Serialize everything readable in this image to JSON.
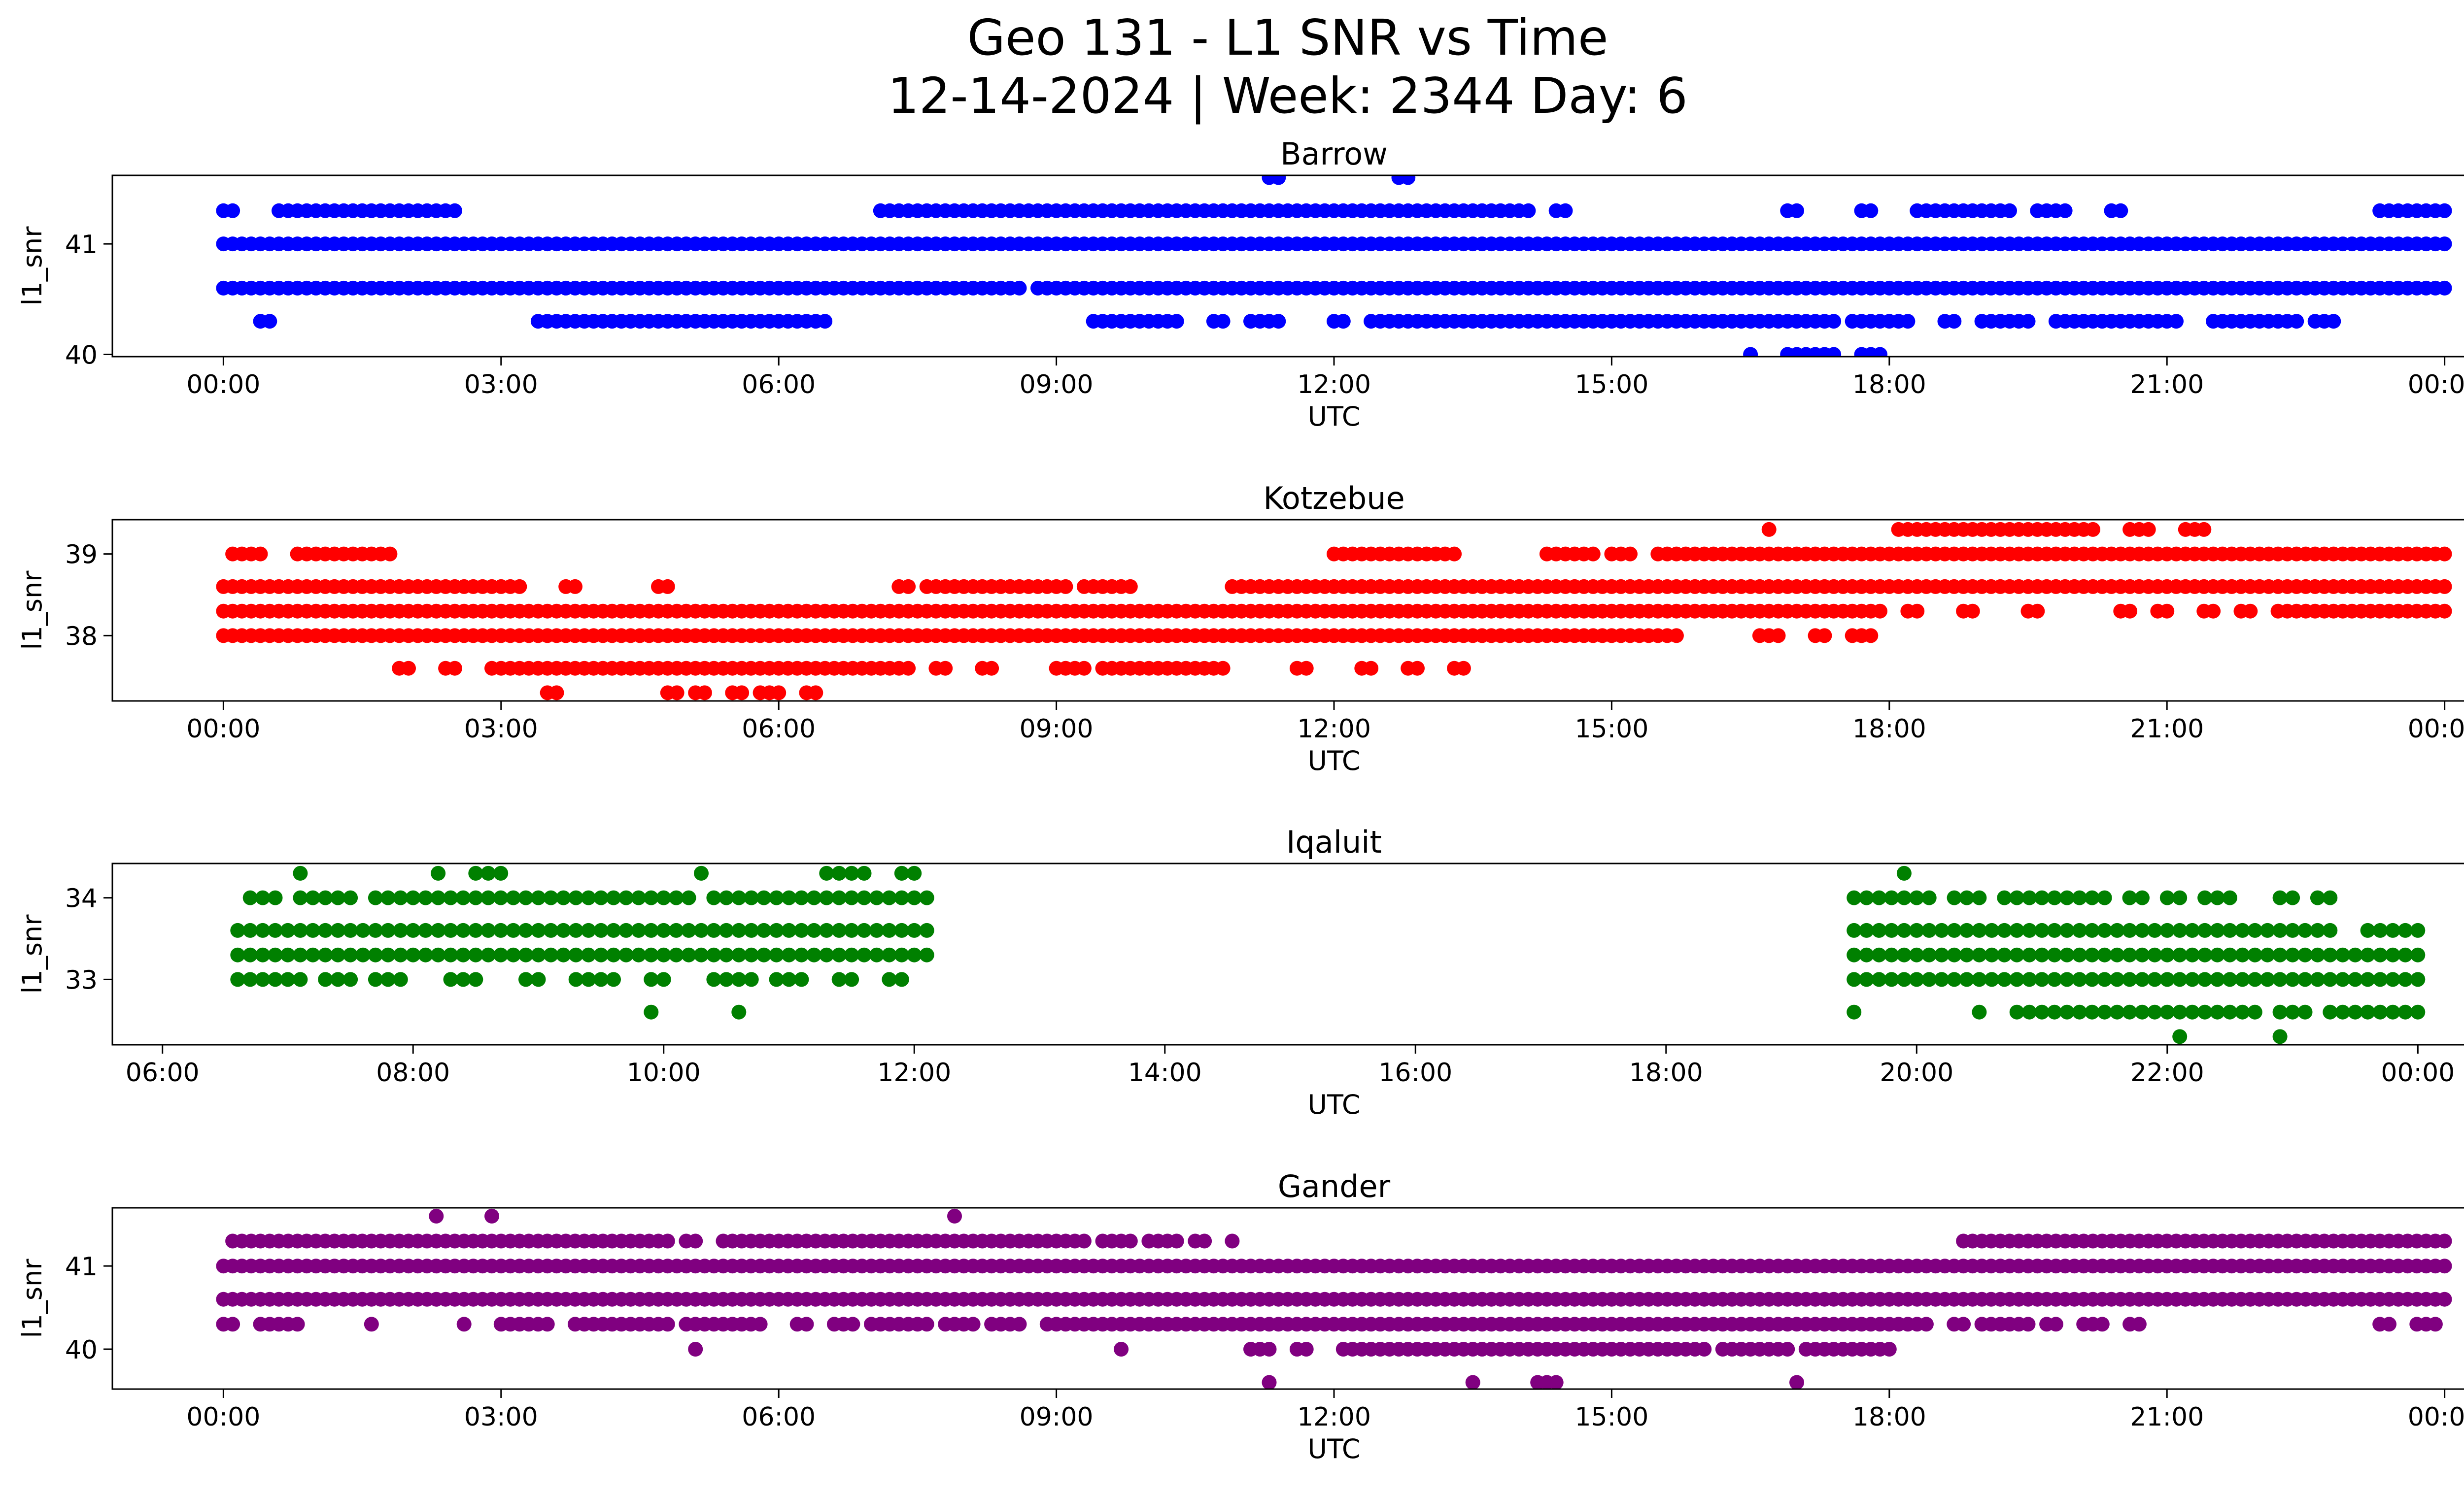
{
  "figure": {
    "title_line1": "Geo 131 - L1 SNR vs Time",
    "title_line2": "12-14-2024 | Week: 2344 Day: 6"
  },
  "chart_data": [
    {
      "type": "scatter",
      "title": "Barrow",
      "xlabel": "UTC",
      "ylabel": "l1_snr",
      "color": "#0000ff",
      "x_unit": "hours",
      "xlim": [
        -1.2,
        25.2
      ],
      "ylim": [
        39.98,
        41.62
      ],
      "xticks": [
        0,
        3,
        6,
        9,
        12,
        15,
        18,
        21,
        24
      ],
      "xtick_labels": [
        "00:00",
        "03:00",
        "06:00",
        "09:00",
        "12:00",
        "15:00",
        "18:00",
        "21:00",
        "00:00"
      ],
      "yticks": [
        40,
        41
      ],
      "ytick_labels": [
        "40",
        "41"
      ],
      "series": [
        {
          "y": 41.0,
          "segments": [
            [
              0.0,
              24.0
            ]
          ]
        },
        {
          "y": 40.6,
          "segments": [
            [
              0.0,
              8.6
            ],
            [
              8.8,
              24.0
            ]
          ]
        },
        {
          "y": 41.3,
          "segments": [
            [
              0.0,
              0.1
            ],
            [
              0.6,
              2.5
            ],
            [
              7.1,
              8.9
            ],
            [
              9.0,
              14.1
            ],
            [
              14.4,
              14.5
            ],
            [
              16.9,
              17.0
            ],
            [
              17.7,
              17.8
            ],
            [
              18.3,
              19.3
            ],
            [
              19.6,
              19.9
            ],
            [
              20.4,
              20.5
            ],
            [
              23.3,
              24.0
            ]
          ]
        },
        {
          "y": 40.3,
          "segments": [
            [
              0.4,
              0.5
            ],
            [
              3.4,
              6.5
            ],
            [
              9.4,
              10.3
            ],
            [
              10.7,
              10.8
            ],
            [
              11.1,
              11.4
            ],
            [
              12.0,
              12.1
            ],
            [
              12.4,
              17.4
            ],
            [
              17.6,
              18.2
            ],
            [
              18.6,
              18.7
            ],
            [
              19.0,
              19.5
            ],
            [
              19.8,
              21.1
            ],
            [
              21.5,
              22.4
            ],
            [
              22.6,
              22.8
            ]
          ]
        },
        {
          "y": 40.0,
          "segments": [
            [
              16.5,
              16.5
            ],
            [
              16.9,
              17.4
            ],
            [
              17.7,
              17.9
            ]
          ]
        },
        {
          "y": 41.6,
          "segments": [
            [
              11.3,
              11.4
            ],
            [
              12.7,
              12.8
            ]
          ]
        }
      ]
    },
    {
      "type": "scatter",
      "title": "Kotzebue",
      "xlabel": "UTC",
      "ylabel": "l1_snr",
      "color": "#ff0000",
      "x_unit": "hours",
      "xlim": [
        -1.2,
        25.2
      ],
      "ylim": [
        37.2,
        39.42
      ],
      "xticks": [
        0,
        3,
        6,
        9,
        12,
        15,
        18,
        21,
        24
      ],
      "xtick_labels": [
        "00:00",
        "03:00",
        "06:00",
        "09:00",
        "12:00",
        "15:00",
        "18:00",
        "21:00",
        "00:00"
      ],
      "yticks": [
        38,
        39
      ],
      "ytick_labels": [
        "38",
        "39"
      ],
      "series": [
        {
          "y": 38.6,
          "segments": [
            [
              0.0,
              3.2
            ],
            [
              3.7,
              3.8
            ],
            [
              4.7,
              4.8
            ],
            [
              7.3,
              7.4
            ],
            [
              7.6,
              9.1
            ],
            [
              9.3,
              9.8
            ],
            [
              10.9,
              24.0
            ]
          ]
        },
        {
          "y": 38.3,
          "segments": [
            [
              0.0,
              17.9
            ],
            [
              18.2,
              18.3
            ],
            [
              18.8,
              18.9
            ],
            [
              19.5,
              19.6
            ],
            [
              20.5,
              20.6
            ],
            [
              20.9,
              21.0
            ],
            [
              21.4,
              21.5
            ],
            [
              21.8,
              21.9
            ],
            [
              22.2,
              24.0
            ]
          ]
        },
        {
          "y": 38.0,
          "segments": [
            [
              0.0,
              15.7
            ],
            [
              16.6,
              16.8
            ],
            [
              17.2,
              17.3
            ],
            [
              17.6,
              17.8
            ]
          ]
        },
        {
          "y": 39.0,
          "segments": [
            [
              0.1,
              0.4
            ],
            [
              0.8,
              1.8
            ],
            [
              12.0,
              13.3
            ],
            [
              14.3,
              14.8
            ],
            [
              15.0,
              15.2
            ],
            [
              15.5,
              24.0
            ]
          ]
        },
        {
          "y": 37.6,
          "segments": [
            [
              1.9,
              2.0
            ],
            [
              2.4,
              2.5
            ],
            [
              2.9,
              7.4
            ],
            [
              7.7,
              7.8
            ],
            [
              8.2,
              8.3
            ],
            [
              9.0,
              9.3
            ],
            [
              9.5,
              10.8
            ],
            [
              11.6,
              11.7
            ],
            [
              12.3,
              12.4
            ],
            [
              12.8,
              12.9
            ],
            [
              13.3,
              13.4
            ]
          ]
        },
        {
          "y": 37.3,
          "segments": [
            [
              3.5,
              3.6
            ],
            [
              4.8,
              4.9
            ],
            [
              5.1,
              5.2
            ],
            [
              5.5,
              5.6
            ],
            [
              5.8,
              6.0
            ],
            [
              6.3,
              6.4
            ]
          ]
        },
        {
          "y": 39.3,
          "segments": [
            [
              16.7,
              16.7
            ],
            [
              18.1,
              20.2
            ],
            [
              20.6,
              20.8
            ],
            [
              21.2,
              21.4
            ]
          ]
        }
      ]
    },
    {
      "type": "scatter",
      "title": "Iqaluit",
      "xlabel": "UTC",
      "ylabel": "l1_snr",
      "color": "#008000",
      "x_unit": "hours",
      "xlim": [
        5.6,
        25.1
      ],
      "ylim": [
        32.2,
        34.42
      ],
      "xticks": [
        6,
        8,
        10,
        12,
        14,
        16,
        18,
        20,
        22,
        24
      ],
      "xtick_labels": [
        "06:00",
        "08:00",
        "10:00",
        "12:00",
        "14:00",
        "16:00",
        "18:00",
        "20:00",
        "22:00",
        "00:00"
      ],
      "yticks": [
        33,
        34
      ],
      "ytick_labels": [
        "33",
        "34"
      ],
      "series": [
        {
          "y": 33.6,
          "segments": [
            [
              6.6,
              12.1
            ],
            [
              19.5,
              23.1
            ],
            [
              23.2,
              23.3
            ],
            [
              23.6,
              24.0
            ]
          ]
        },
        {
          "y": 33.3,
          "segments": [
            [
              6.6,
              12.1
            ],
            [
              19.5,
              24.0
            ]
          ]
        },
        {
          "y": 33.0,
          "segments": [
            [
              6.6,
              7.1
            ],
            [
              7.3,
              7.5
            ],
            [
              7.7,
              7.9
            ],
            [
              8.3,
              8.5
            ],
            [
              8.9,
              9.0
            ],
            [
              9.3,
              9.6
            ],
            [
              9.9,
              10.0
            ],
            [
              10.4,
              10.7
            ],
            [
              10.9,
              11.1
            ],
            [
              11.4,
              11.5
            ],
            [
              11.8,
              11.9
            ],
            [
              19.5,
              24.0
            ]
          ]
        },
        {
          "y": 34.0,
          "segments": [
            [
              6.7,
              6.9
            ],
            [
              7.1,
              7.5
            ],
            [
              7.7,
              9.3
            ],
            [
              9.4,
              9.8
            ],
            [
              9.9,
              10.2
            ],
            [
              10.4,
              11.0
            ],
            [
              11.1,
              12.1
            ],
            [
              19.5,
              20.1
            ],
            [
              20.3,
              20.5
            ],
            [
              20.7,
              21.1
            ],
            [
              21.2,
              21.5
            ],
            [
              21.7,
              21.8
            ],
            [
              22.0,
              22.1
            ],
            [
              22.3,
              22.5
            ],
            [
              22.9,
              23.0
            ],
            [
              23.2,
              23.3
            ]
          ]
        },
        {
          "y": 34.3,
          "segments": [
            [
              7.1,
              7.1
            ],
            [
              8.2,
              8.2
            ],
            [
              8.5,
              8.7
            ],
            [
              10.3,
              10.3
            ],
            [
              11.3,
              11.6
            ],
            [
              11.9,
              12.0
            ],
            [
              19.9,
              19.9
            ]
          ]
        },
        {
          "y": 32.6,
          "segments": [
            [
              9.9,
              9.9
            ],
            [
              10.6,
              10.6
            ],
            [
              19.5,
              19.5
            ],
            [
              20.5,
              20.5
            ],
            [
              20.8,
              22.7
            ],
            [
              22.9,
              23.1
            ],
            [
              23.3,
              24.0
            ]
          ]
        },
        {
          "y": 32.3,
          "segments": [
            [
              22.1,
              22.1
            ],
            [
              22.9,
              22.9
            ]
          ]
        }
      ]
    },
    {
      "type": "scatter",
      "title": "Gander",
      "xlabel": "UTC",
      "ylabel": "l1_snr",
      "color": "#800080",
      "x_unit": "hours",
      "xlim": [
        -1.2,
        25.2
      ],
      "ylim": [
        39.52,
        41.7
      ],
      "xticks": [
        0,
        3,
        6,
        9,
        12,
        15,
        18,
        21,
        24
      ],
      "xtick_labels": [
        "00:00",
        "03:00",
        "06:00",
        "09:00",
        "12:00",
        "15:00",
        "18:00",
        "21:00",
        "00:00"
      ],
      "yticks": [
        40,
        41
      ],
      "ytick_labels": [
        "40",
        "41"
      ],
      "series": [
        {
          "y": 41.0,
          "segments": [
            [
              0.0,
              24.0
            ]
          ]
        },
        {
          "y": 40.6,
          "segments": [
            [
              0.0,
              2.3
            ],
            [
              2.4,
              24.0
            ]
          ]
        },
        {
          "y": 41.3,
          "segments": [
            [
              0.1,
              4.8
            ],
            [
              5.0,
              5.1
            ],
            [
              5.4,
              5.7
            ],
            [
              5.8,
              5.9
            ],
            [
              6.0,
              9.3
            ],
            [
              9.5,
              9.8
            ],
            [
              10.0,
              10.3
            ],
            [
              10.5,
              10.6
            ],
            [
              10.9,
              10.9
            ],
            [
              18.8,
              24.0
            ]
          ]
        },
        {
          "y": 40.3,
          "segments": [
            [
              0.0,
              0.1
            ],
            [
              0.4,
              0.6
            ],
            [
              0.7,
              0.8
            ],
            [
              1.6,
              1.6
            ],
            [
              2.6,
              2.6
            ],
            [
              3.0,
              3.5
            ],
            [
              3.8,
              4.8
            ],
            [
              5.0,
              5.8
            ],
            [
              6.2,
              6.3
            ],
            [
              6.6,
              6.8
            ],
            [
              7.0,
              7.6
            ],
            [
              7.8,
              8.1
            ],
            [
              8.3,
              8.6
            ],
            [
              8.9,
              18.4
            ],
            [
              18.7,
              18.8
            ],
            [
              19.0,
              19.5
            ],
            [
              19.7,
              19.8
            ],
            [
              20.1,
              20.3
            ],
            [
              20.6,
              20.7
            ],
            [
              23.3,
              23.4
            ],
            [
              23.7,
              23.9
            ]
          ]
        },
        {
          "y": 41.6,
          "segments": [
            [
              2.3,
              2.3
            ],
            [
              2.9,
              2.9
            ],
            [
              7.9,
              7.9
            ]
          ]
        },
        {
          "y": 40.0,
          "segments": [
            [
              5.1,
              5.1
            ],
            [
              9.7,
              9.7
            ],
            [
              11.1,
              11.3
            ],
            [
              11.6,
              11.7
            ],
            [
              12.1,
              16.0
            ],
            [
              16.2,
              16.9
            ],
            [
              17.1,
              18.0
            ]
          ]
        },
        {
          "y": 39.6,
          "segments": [
            [
              11.3,
              11.3
            ],
            [
              13.5,
              13.5
            ],
            [
              14.2,
              14.4
            ],
            [
              17.0,
              17.0
            ]
          ]
        }
      ]
    }
  ]
}
